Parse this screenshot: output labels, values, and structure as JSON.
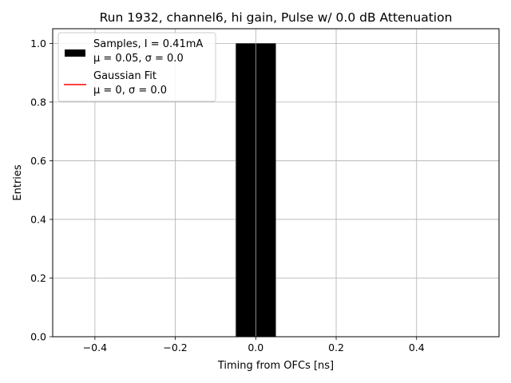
{
  "chart_data": {
    "type": "bar",
    "title": "Run 1932, channel6, hi gain, Pulse w/ 0.0 dB Attenuation",
    "xlabel": "Timing from OFCs [ns]",
    "ylabel": "Entries",
    "xlim": [
      -0.505,
      0.605
    ],
    "ylim": [
      0,
      1.05
    ],
    "grid": true,
    "xticks": [
      {
        "value": -0.4,
        "label": "−0.4"
      },
      {
        "value": -0.2,
        "label": "−0.2"
      },
      {
        "value": 0.0,
        "label": "0.0"
      },
      {
        "value": 0.2,
        "label": "0.2"
      },
      {
        "value": 0.4,
        "label": "0.4"
      }
    ],
    "yticks": [
      {
        "value": 0.0,
        "label": "0.0"
      },
      {
        "value": 0.2,
        "label": "0.2"
      },
      {
        "value": 0.4,
        "label": "0.4"
      },
      {
        "value": 0.6,
        "label": "0.6"
      },
      {
        "value": 0.8,
        "label": "0.8"
      },
      {
        "value": 1.0,
        "label": "1.0"
      }
    ],
    "bars": [
      {
        "x0": -0.05,
        "x1": 0.0,
        "value": 1.0
      },
      {
        "x0": 0.0,
        "x1": 0.05,
        "value": 1.0
      }
    ],
    "legend": {
      "placement": "top-left",
      "entries": [
        {
          "kind": "patch",
          "color": "#000000",
          "line1": "Samples, I = 0.41mA",
          "line2": "μ = 0.05, σ = 0.0"
        },
        {
          "kind": "line",
          "color": "#ff0000",
          "line1": "Gaussian Fit",
          "line2": "μ = 0, σ = 0.0"
        }
      ]
    }
  }
}
